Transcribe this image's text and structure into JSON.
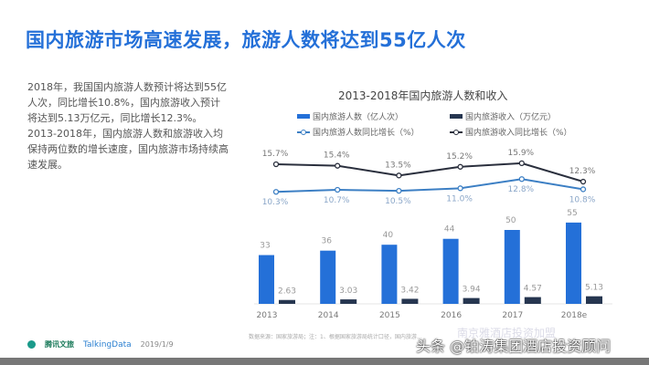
{
  "title": "国内旅游市场高速发展，旅游人数将达到55亿人次",
  "description": "2018年，我国国内旅游人数预计将达到55亿人次，同比增长10.8%，国内旅游收入预计将达到5.13万亿元，同比增长12.3%。2013-2018年，国内旅游人数和旅游收入均保持两位数的增长速度，国内旅游市场持续高速发展。",
  "chart_data": {
    "type": "bar",
    "title": "2013-2018年国内旅游人数和收入",
    "categories": [
      "2013",
      "2014",
      "2015",
      "2016",
      "2017",
      "2018e"
    ],
    "series": [
      {
        "name": "国内旅游人数（亿人次）",
        "kind": "bar",
        "color": "#2470d8",
        "values": [
          33,
          36,
          40,
          44,
          50,
          55
        ],
        "labels": [
          "33",
          "36",
          "40",
          "44",
          "50",
          "55"
        ]
      },
      {
        "name": "国内旅游收入（万亿元）",
        "kind": "bar",
        "color": "#263650",
        "values": [
          2.63,
          3.03,
          3.42,
          3.94,
          4.57,
          5.13
        ],
        "labels": [
          "2.63",
          "3.03",
          "3.42",
          "3.94",
          "4.57",
          "5.13"
        ]
      },
      {
        "name": "国内旅游人数同比增长（%）",
        "kind": "line",
        "color": "#3c7fc4",
        "values": [
          10.3,
          10.7,
          10.5,
          11.0,
          12.8,
          10.8
        ],
        "labels": [
          "10.3%",
          "10.7%",
          "10.5%",
          "11.0%",
          "12.8%",
          "10.8%"
        ]
      },
      {
        "name": "国内旅游收入同比增长（%）",
        "kind": "line",
        "color": "#2a2f3d",
        "values": [
          15.7,
          15.4,
          13.5,
          15.2,
          15.9,
          12.3
        ],
        "labels": [
          "15.7%",
          "15.4%",
          "13.5%",
          "15.2%",
          "15.9%",
          "12.3%"
        ]
      }
    ],
    "legend": "top"
  },
  "footer": {
    "source": "数据来源：国家旅游局；注：1、根据国家旅游局统计口径，国内旅游...",
    "brand1": "腾讯文旅",
    "brand2": "TalkingData",
    "date": "2019/1/9"
  },
  "watermark": "头条 @铂涛集团酒店投资顾问",
  "watermark2": "南京雅酒店投资加盟"
}
